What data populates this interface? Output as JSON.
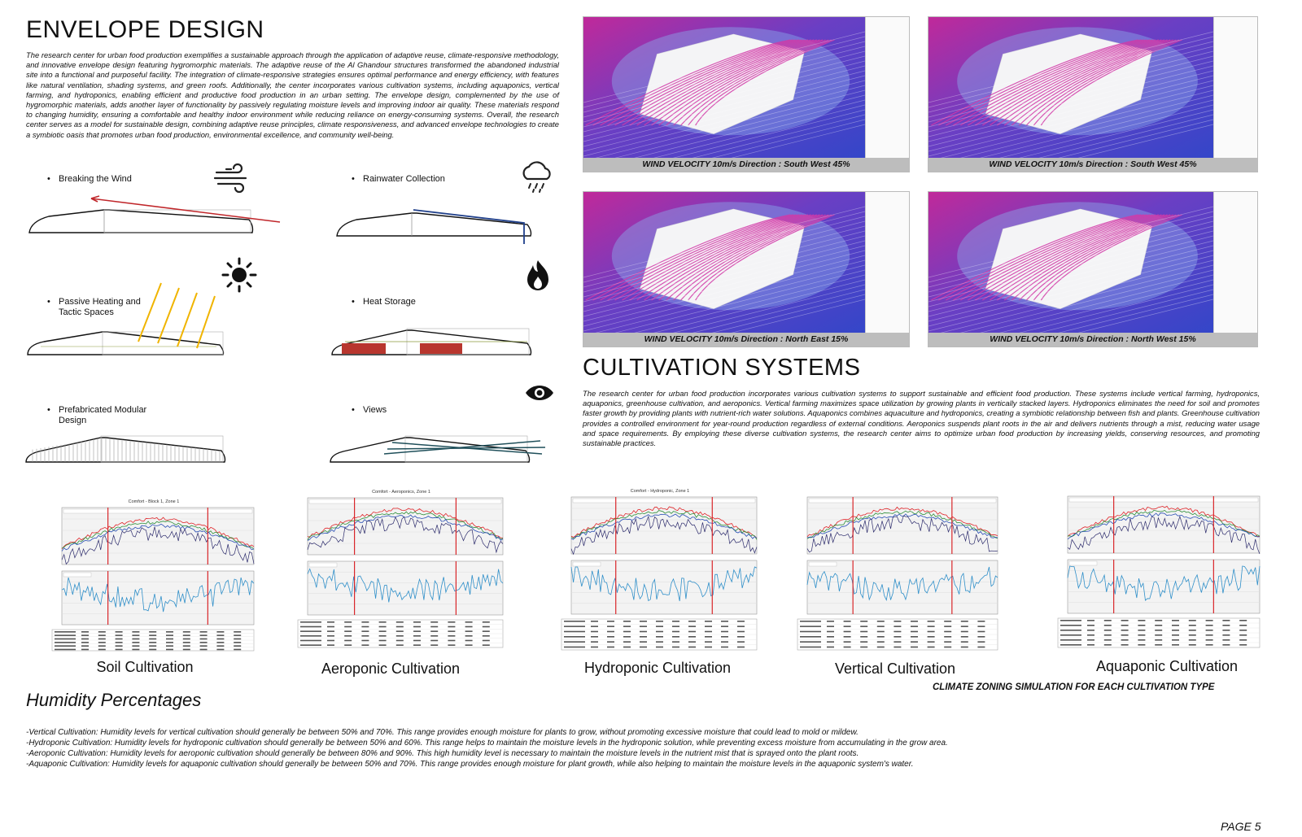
{
  "envelope": {
    "title": "ENVELOPE DESIGN",
    "paragraph": "The research center for urban food production exemplifies a sustainable approach through the application of adaptive reuse, climate-responsive methodology, and innovative envelope design featuring hygromorphic materials. The adaptive reuse of the Al Ghandour structures transformed the abandoned industrial site into a functional and purposeful facility. The integration of climate-responsive strategies ensures optimal performance and energy efficiency, with features like natural ventilation, shading systems, and green roofs. Additionally, the center incorporates various cultivation systems, including aquaponics, vertical farming, and hydroponics, enabling efficient and productive food production in an urban setting. The envelope design, complemented by the use of hygromorphic materials, adds another layer of functionality by passively regulating moisture levels and improving indoor air quality. These materials respond to changing humidity, ensuring a comfortable and healthy indoor environment while reducing reliance on energy-consuming systems. Overall, the research center serves as a model for sustainable design, combining adaptive reuse principles, climate responsiveness, and advanced envelope technologies to create a symbiotic oasis that promotes urban food production, environmental excellence, and community well-being.",
    "strategies": [
      {
        "bullet": "•",
        "label": "Breaking the Wind",
        "icon": "wind-icon"
      },
      {
        "bullet": "•",
        "label": "Rainwater Collection",
        "icon": "rain-cloud-icon"
      },
      {
        "bullet": "•",
        "label": "Passive Heating and",
        "label2": "Tactic Spaces",
        "icon": "sun-icon"
      },
      {
        "bullet": "•",
        "label": "Heat Storage",
        "icon": "fire-icon"
      },
      {
        "bullet": "•",
        "label": "Prefabricated Modular",
        "label2": "Design",
        "icon": ""
      },
      {
        "bullet": "•",
        "label": "Views",
        "icon": "eye-icon"
      }
    ]
  },
  "simulations": [
    {
      "caption": "WIND VELOCITY 10m/s Direction : South West 45%"
    },
    {
      "caption": "WIND VELOCITY 10m/s Direction : South West 45%"
    },
    {
      "caption": "WIND VELOCITY 10m/s  Direction : North East 15%"
    },
    {
      "caption": "WIND VELOCITY 10m/s Direction : North West 15%"
    }
  ],
  "cultivation": {
    "title": "CULTIVATION SYSTEMS",
    "paragraph": "The research center for urban food production incorporates various cultivation systems to support sustainable and efficient food production. These systems include vertical farming, hydroponics, aquaponics, greenhouse cultivation, and aeroponics. Vertical farming maximizes space utilization by growing plants in vertically stacked layers. Hydroponics eliminates the need for soil and promotes faster growth by providing plants with nutrient-rich water solutions. Aquaponics combines aquaculture and hydroponics, creating a symbiotic relationship between fish and plants. Greenhouse cultivation provides a controlled environment for year-round production regardless of external conditions. Aeroponics suspends plant roots in the air and delivers nutrients through a mist, reducing water usage and space requirements. By employing these diverse cultivation systems, the research center aims to optimize urban food production by increasing yields, conserving resources, and promoting sustainable practices."
  },
  "charts": [
    {
      "label": "Soil Cultivation",
      "chart_title": "Comfort - Block 1, Zone 1"
    },
    {
      "label": "Aeroponic Cultivation",
      "chart_title": "Comfort - Aeroponics, Zone 1"
    },
    {
      "label": "Hydroponic Cultivation",
      "chart_title": "Comfort - Hydroponic, Zone 1"
    },
    {
      "label": "Vertical Cultivation",
      "chart_title": ""
    },
    {
      "label": "Aquaponic Cultivation",
      "chart_title": ""
    }
  ],
  "colors": {
    "air": "#2a4fb5",
    "radiant": "#e0262a",
    "operative": "#2f8f3a",
    "outside": "#2b2a6b",
    "humidity": "#2f8fc9",
    "marker": "#d9262a",
    "sim_magenta": "#c0299a",
    "sim_blue": "#3346c9"
  },
  "humidity": {
    "title": "Humidity Percentages",
    "caption": "CLIMATE ZONING SIMULATION FOR EACH CULTIVATION TYPE",
    "lines": [
      "-Vertical Cultivation: Humidity levels for vertical cultivation should generally be between 50% and 70%. This range provides enough moisture for plants to grow, without promoting excessive moisture that could lead to mold or mildew.",
      "-Hydroponic Cultivation: Humidity levels for hydroponic cultivation should generally be between 50% and 60%. This range helps to maintain the moisture levels in the hydroponic solution, while preventing excess moisture from accumulating in the grow area.",
      "-Aeroponic Cultivation: Humidity levels for aeroponic cultivation should generally be between 80% and 90%. This high humidity level is necessary to maintain the moisture levels in the nutrient mist that is sprayed onto the plant roots.",
      "-Aquaponic Cultivation: Humidity levels for aquaponic cultivation should generally be between 50% and 70%. This range provides enough moisture for plant growth, while also helping to maintain the moisture levels in the aquaponic system's water."
    ]
  },
  "page": {
    "number": "PAGE 5"
  }
}
